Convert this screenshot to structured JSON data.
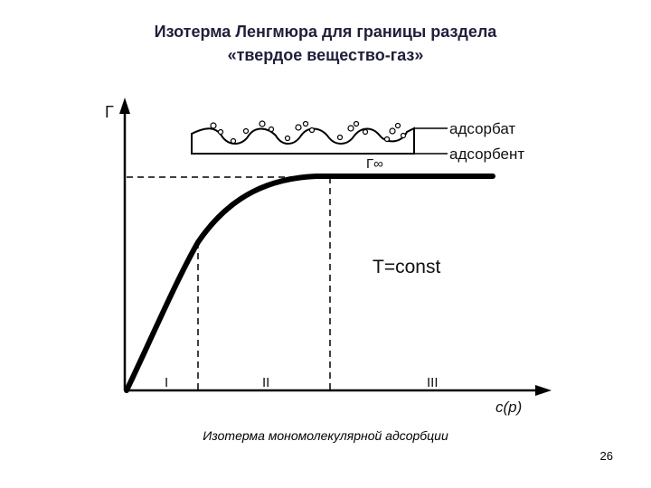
{
  "title": {
    "line1": "Изотерма Ленгмюра для границы раздела",
    "line2": "«твердое вещество-газ»"
  },
  "diagram": {
    "y_axis_label": "Г",
    "x_axis_label": "c(p)",
    "plateau_label": "Г∞",
    "condition_label": "T=const",
    "inset_labels": {
      "adsorbate": "адсорбат",
      "adsorbent": "адсорбент"
    },
    "regions": [
      "I",
      "II",
      "III"
    ]
  },
  "caption": "Изотерма мономолекулярной адсорбции",
  "page_number": "26"
}
